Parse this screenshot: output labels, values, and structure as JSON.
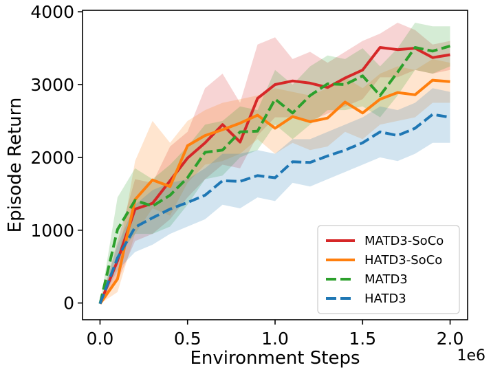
{
  "chart_data": {
    "type": "line",
    "title": "",
    "xlabel": "Environment Steps",
    "ylabel": "Episode Return",
    "x_offset_label": "1e6",
    "xlim": [
      -0.1,
      2.1
    ],
    "ylim": [
      -230,
      4020
    ],
    "xticks": [
      0.0,
      0.5,
      1.0,
      1.5,
      2.0
    ],
    "xtick_labels": [
      "0.0",
      "0.5",
      "1.0",
      "1.5",
      "2.0"
    ],
    "yticks": [
      0,
      1000,
      2000,
      3000,
      4000
    ],
    "ytick_labels": [
      "0",
      "1000",
      "2000",
      "3000",
      "4000"
    ],
    "grid": false,
    "legend_position": "lower-right",
    "x": [
      0.0,
      0.1,
      0.2,
      0.3,
      0.4,
      0.5,
      0.6,
      0.7,
      0.8,
      0.9,
      1.0,
      1.1,
      1.2,
      1.3,
      1.4,
      1.5,
      1.6,
      1.7,
      1.8,
      1.9,
      2.0
    ],
    "series": [
      {
        "name": "MATD3-SoCo",
        "color": "#d62728",
        "dash": "solid",
        "values": [
          -10,
          580,
          1290,
          1370,
          1680,
          1990,
          2200,
          2450,
          2210,
          2810,
          3000,
          3050,
          3020,
          2960,
          3090,
          3200,
          3510,
          3480,
          3500,
          3370,
          3410
        ],
        "lower": [
          -10,
          300,
          850,
          950,
          1150,
          1450,
          1700,
          1900,
          1850,
          2300,
          2550,
          2550,
          2500,
          2600,
          2700,
          2800,
          3100,
          3100,
          3200,
          3150,
          3200
        ],
        "upper": [
          -10,
          850,
          1700,
          1650,
          2150,
          2350,
          2950,
          3150,
          2750,
          3550,
          3650,
          3350,
          3450,
          3300,
          3450,
          3600,
          3700,
          3850,
          3750,
          3550,
          3600
        ]
      },
      {
        "name": "HATD3-SoCo",
        "color": "#ff7f0e",
        "dash": "solid",
        "values": [
          -10,
          330,
          1420,
          1690,
          1600,
          2160,
          2300,
          2380,
          2470,
          2580,
          2400,
          2560,
          2490,
          2540,
          2760,
          2610,
          2800,
          2890,
          2860,
          3060,
          3040
        ],
        "lower": [
          -10,
          150,
          950,
          1300,
          1200,
          1650,
          1900,
          1950,
          2050,
          2250,
          2050,
          2200,
          2100,
          2150,
          2350,
          2250,
          2450,
          2500,
          2550,
          2750,
          2750
        ],
        "upper": [
          -10,
          550,
          1950,
          2500,
          2200,
          2500,
          2650,
          2750,
          2800,
          2850,
          2950,
          2900,
          2850,
          2950,
          3100,
          2950,
          3150,
          3250,
          3200,
          3350,
          3300
        ]
      },
      {
        "name": "MATD3",
        "color": "#2ca02c",
        "dash": "dashed",
        "values": [
          -10,
          1010,
          1410,
          1330,
          1480,
          1720,
          2070,
          2100,
          2350,
          2360,
          2800,
          2610,
          2850,
          3010,
          3000,
          3120,
          2850,
          3170,
          3510,
          3460,
          3530
        ],
        "lower": [
          -10,
          650,
          950,
          950,
          1050,
          1350,
          1700,
          1750,
          2000,
          2100,
          2450,
          2250,
          2450,
          2650,
          2650,
          2700,
          2550,
          2850,
          3200,
          3150,
          3250
        ],
        "upper": [
          -10,
          1450,
          1850,
          1700,
          1900,
          2150,
          2450,
          2500,
          2700,
          2650,
          3200,
          3000,
          3250,
          3400,
          3350,
          3500,
          3250,
          3500,
          3850,
          3800,
          3800
        ]
      },
      {
        "name": "HATD3",
        "color": "#1f77b4",
        "dash": "dashed",
        "values": [
          -10,
          620,
          1040,
          1170,
          1290,
          1380,
          1480,
          1680,
          1670,
          1750,
          1720,
          1940,
          1930,
          2020,
          2100,
          2200,
          2350,
          2300,
          2400,
          2590,
          2550
        ],
        "lower": [
          -10,
          450,
          700,
          800,
          950,
          1050,
          1150,
          1350,
          1300,
          1450,
          1400,
          1650,
          1600,
          1700,
          1800,
          1900,
          2000,
          1950,
          2050,
          2200,
          2200
        ],
        "upper": [
          -10,
          800,
          1350,
          1550,
          1650,
          1700,
          1850,
          2050,
          2050,
          2100,
          2050,
          2250,
          2250,
          2350,
          2450,
          2550,
          2700,
          2650,
          2750,
          2950,
          2900
        ]
      }
    ]
  }
}
